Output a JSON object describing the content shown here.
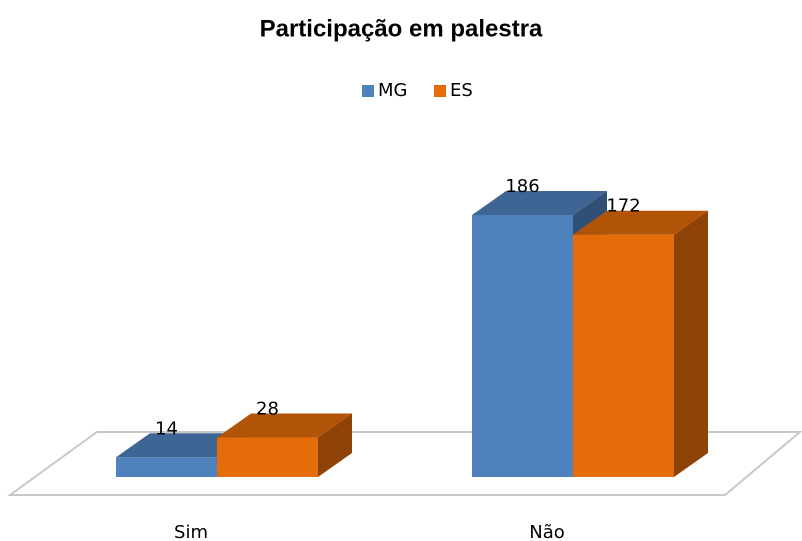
{
  "chart_data": {
    "type": "bar3d",
    "title": "Participação em palestra",
    "categories": [
      "Sim",
      "Não"
    ],
    "series": [
      {
        "name": "MG",
        "color": "#4f81bd",
        "values": [
          14,
          186
        ]
      },
      {
        "name": "ES",
        "color": "#e46c0a",
        "values": [
          28,
          172
        ]
      }
    ]
  }
}
